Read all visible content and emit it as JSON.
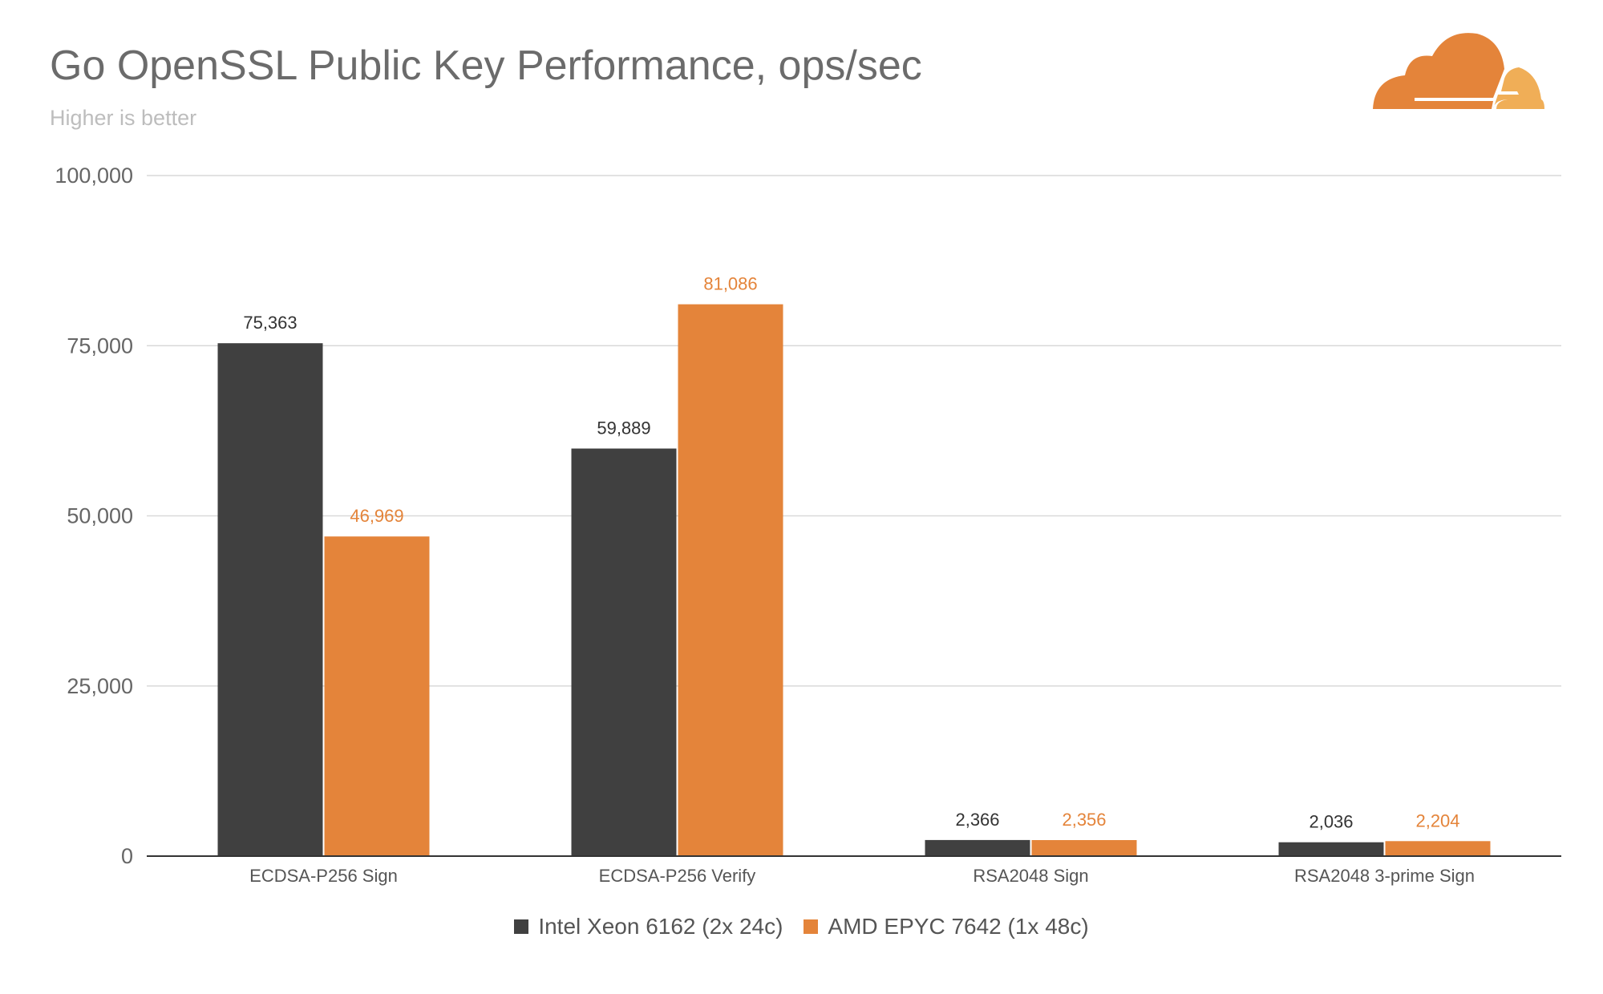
{
  "chart_data": {
    "type": "bar",
    "title": "Go OpenSSL Public Key Performance, ops/sec",
    "subtitle": "Higher is better",
    "categories": [
      "ECDSA-P256 Sign",
      "ECDSA-P256 Verify",
      "RSA2048 Sign",
      "RSA2048 3-prime Sign"
    ],
    "series": [
      {
        "name": "Intel Xeon 6162 (2x 24c)",
        "color": "#404040",
        "values": [
          75363,
          59889,
          2366,
          2036
        ],
        "labels": [
          "75,363",
          "59,889",
          "2,366",
          "2,036"
        ]
      },
      {
        "name": "AMD EPYC 7642 (1x 48c)",
        "color": "#e4843a",
        "values": [
          46969,
          81086,
          2356,
          2204
        ],
        "labels": [
          "46,969",
          "81,086",
          "2,356",
          "2,204"
        ]
      }
    ],
    "ylim": [
      0,
      100000
    ],
    "yticks": [
      0,
      25000,
      50000,
      75000,
      100000
    ],
    "ytick_labels": [
      "0",
      "25,000",
      "50,000",
      "75,000",
      "100,000"
    ],
    "xlabel": "",
    "ylabel": "",
    "grid": true,
    "legend_position": "bottom"
  },
  "logo": "cloudflare-logo"
}
